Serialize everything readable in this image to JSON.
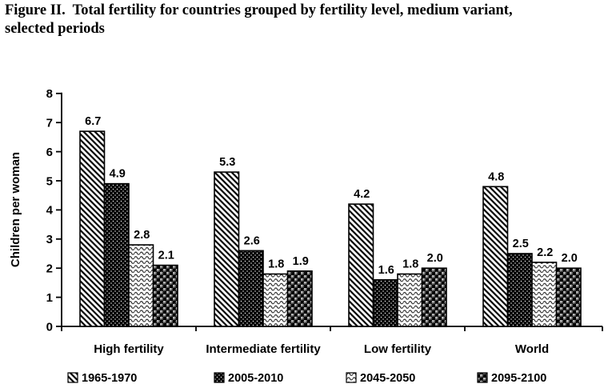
{
  "figure_title": {
    "line1": "Figure II.  Total fertility for countries grouped by fertility level, medium variant,",
    "line2": "selected periods"
  },
  "chart_data": {
    "type": "bar",
    "categories": [
      "High fertility",
      "Intermediate fertility",
      "Low fertility",
      "World"
    ],
    "series": [
      {
        "name": "1965-1970",
        "pattern": "diagonal-stripes",
        "values": [
          6.7,
          5.3,
          4.2,
          4.8
        ]
      },
      {
        "name": "2005-2010",
        "pattern": "dotted-black",
        "values": [
          4.9,
          2.6,
          1.6,
          2.5
        ]
      },
      {
        "name": "2045-2050",
        "pattern": "wavy-lines",
        "values": [
          2.8,
          1.8,
          1.8,
          2.2
        ]
      },
      {
        "name": "2095-2100",
        "pattern": "spheres",
        "values": [
          2.1,
          1.9,
          2.0,
          2.0
        ]
      }
    ],
    "ylabel": "Children per woman",
    "ylim": [
      0,
      8
    ],
    "ytick_step": 1,
    "value_labels": true,
    "value_label_format": "one-decimal",
    "grid": false,
    "legend_position": "bottom",
    "colors": {
      "foreground": "#000000",
      "background": "#ffffff"
    }
  }
}
